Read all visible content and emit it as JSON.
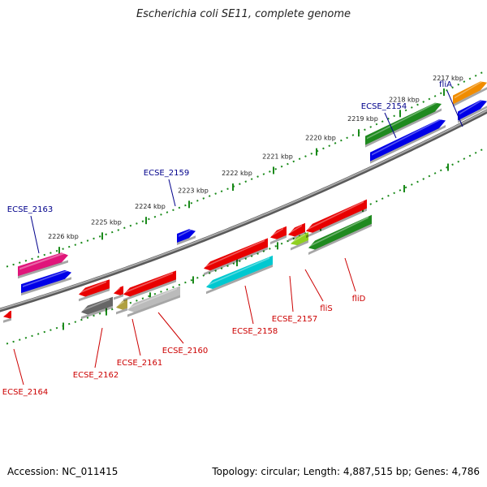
{
  "title": "Escherichia coli SE11, complete genome",
  "accession": "Accession: NC_011415",
  "summary": "Topology: circular; Length: 4,887,515 bp; Genes: 4,786",
  "colors": {
    "backbone": "#888888",
    "tick": "#1a8a1a",
    "label_plus": "#00008b",
    "label_minus": "#cc0000",
    "red": "#e80000",
    "blue": "#0000e8",
    "green": "#1f8a1f",
    "orange": "#f08c00",
    "magenta": "#e0157a",
    "cyan": "#00c8d0",
    "gray": "#666666",
    "lightgray": "#bbbbbb",
    "olive": "#b0a040",
    "lime": "#90d020"
  },
  "ticks": [
    "2226 kbp",
    "2225 kbp",
    "2224 kbp",
    "2223 kbp",
    "2222 kbp",
    "2221 kbp",
    "2220 kbp",
    "2219 kbp",
    "2218 kbp",
    "2217 kbp"
  ],
  "genes": [
    {
      "name": "ECSE_2163",
      "strand": "+",
      "colors": [
        "magenta",
        "blue"
      ]
    },
    {
      "name": "ECSE_2159",
      "strand": "+",
      "colors": [
        "blue"
      ]
    },
    {
      "name": "ECSE_2154",
      "strand": "+",
      "colors": [
        "green",
        "blue"
      ]
    },
    {
      "name": "fliA",
      "strand": "+",
      "colors": [
        "orange",
        "blue"
      ]
    },
    {
      "name": "ECSE_2164",
      "strand": "-",
      "colors": [
        "red"
      ]
    },
    {
      "name": "ECSE_2162",
      "strand": "-",
      "colors": [
        "red",
        "gray"
      ]
    },
    {
      "name": "ECSE_2161",
      "strand": "-",
      "colors": [
        "red",
        "olive"
      ]
    },
    {
      "name": "ECSE_2160",
      "strand": "-",
      "colors": [
        "red",
        "lightgray"
      ]
    },
    {
      "name": "ECSE_2158",
      "strand": "-",
      "colors": [
        "red",
        "cyan"
      ]
    },
    {
      "name": "ECSE_2157",
      "strand": "-",
      "colors": [
        "red",
        "lime"
      ]
    },
    {
      "name": "fliS",
      "strand": "-",
      "colors": [
        "red",
        "lime"
      ]
    },
    {
      "name": "fliD",
      "strand": "-",
      "colors": [
        "red",
        "green"
      ]
    }
  ]
}
